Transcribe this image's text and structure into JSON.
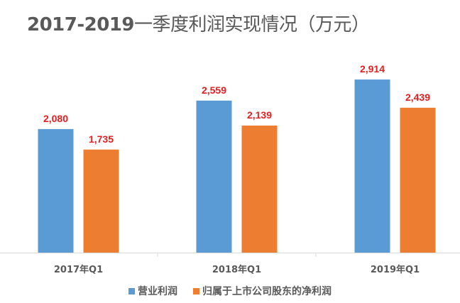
{
  "chart_data": {
    "type": "bar",
    "title": "2017-2019一季度利润实现情况（万元）",
    "title_bold_part": "2017-2019",
    "title_rest": "一季度利润实现情况（万元）",
    "xlabel": "",
    "ylabel": "",
    "ylim": [
      0,
      3500
    ],
    "grid": false,
    "legend_position": "bottom",
    "categories": [
      "2017年Q1",
      "2018年Q1",
      "2019年Q1"
    ],
    "value_labels": {
      "营业利润": [
        "2,080",
        "2,559",
        "2,914"
      ],
      "归属于上市公司股东的净利润": [
        "1,735",
        "2,139",
        "2,439"
      ]
    },
    "series": [
      {
        "name": "营业利润",
        "color": "#5b9bd5",
        "values": [
          2080,
          2559,
          2914
        ]
      },
      {
        "name": "归属于上市公司股东的净利润",
        "color": "#ed7d31",
        "values": [
          1735,
          2139,
          2439
        ]
      }
    ],
    "label_color": "#e02020"
  }
}
